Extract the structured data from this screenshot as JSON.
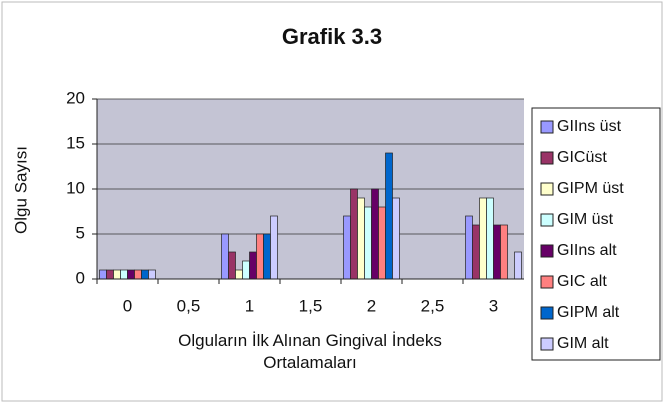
{
  "chart_data": {
    "type": "bar",
    "title": "Grafik 3.3",
    "ylabel": "Olgu Sayısı",
    "xlabel": "Olguların İlk Alınan Gingival İndeks Ortalamaları",
    "categories": [
      "0",
      "0,5",
      "1",
      "1,5",
      "2",
      "2,5",
      "3"
    ],
    "series": [
      {
        "name": "GIIns üst",
        "color": "#9999ff",
        "values": [
          1,
          0,
          5,
          0,
          7,
          0,
          7
        ]
      },
      {
        "name": "GICüst",
        "color": "#993366",
        "values": [
          1,
          0,
          3,
          0,
          10,
          0,
          6
        ]
      },
      {
        "name": "GIPM üst",
        "color": "#ffffcc",
        "values": [
          1,
          0,
          1,
          0,
          9,
          0,
          9
        ]
      },
      {
        "name": "GIM üst",
        "color": "#ccffff",
        "values": [
          1,
          0,
          2,
          0,
          8,
          0,
          9
        ]
      },
      {
        "name": "GIIns alt",
        "color": "#660066",
        "values": [
          1,
          0,
          3,
          0,
          10,
          0,
          6
        ]
      },
      {
        "name": "GIC alt",
        "color": "#ff8080",
        "values": [
          1,
          0,
          5,
          0,
          8,
          0,
          6
        ]
      },
      {
        "name": "GIPM alt",
        "color": "#0066cc",
        "values": [
          1,
          0,
          5,
          0,
          14,
          0,
          0
        ]
      },
      {
        "name": "GIM alt",
        "color": "#ccccff",
        "values": [
          1,
          0,
          7,
          0,
          9,
          0,
          3
        ]
      }
    ],
    "ylim": [
      0,
      20
    ],
    "yticks": [
      0,
      5,
      10,
      15,
      20
    ],
    "grid": true,
    "legend": "right"
  }
}
